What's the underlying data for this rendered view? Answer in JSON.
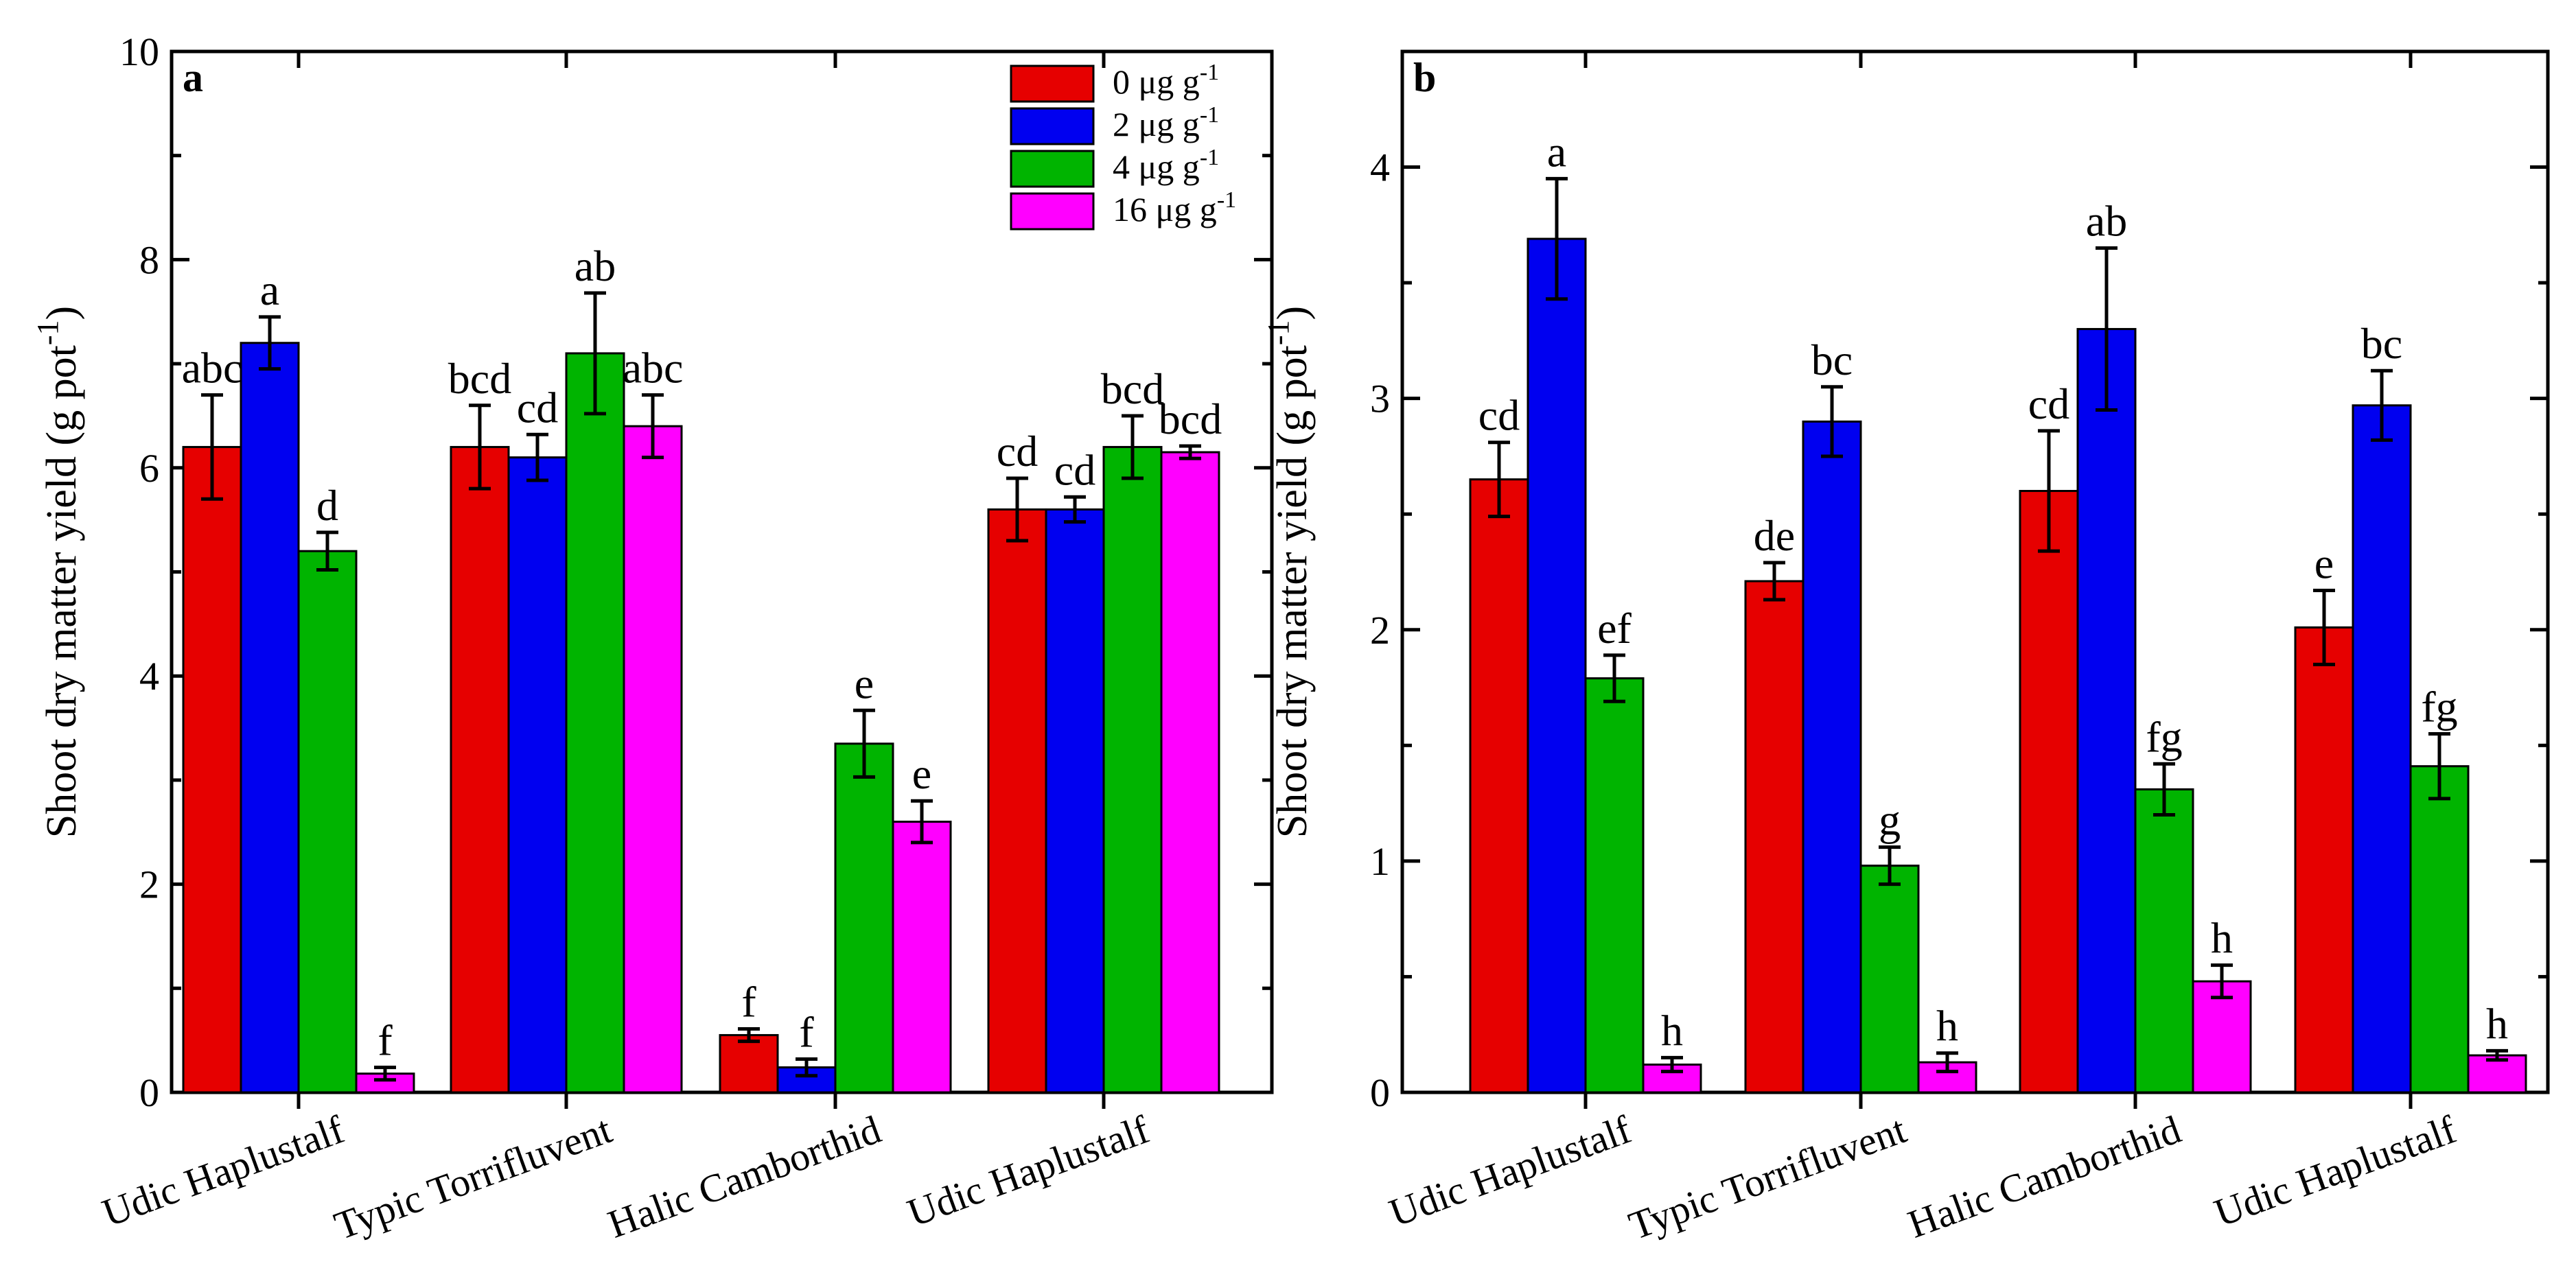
{
  "chart_data": [
    {
      "type": "bar",
      "panel_label": "a",
      "ylabel": "Shoot dry matter yield (g pot",
      "ylabel_sup": "-1",
      "ylabel_tail": ")",
      "ylim": [
        0,
        10
      ],
      "yticks": [
        "0",
        "2",
        "4",
        "6",
        "8",
        "10"
      ],
      "categories": [
        "Udic Haplustalf",
        "Typic Torrifluvent",
        "Halic Camborthid",
        "Udic Haplustalf"
      ],
      "legend": {
        "position": "top-right",
        "entries": [
          {
            "label": "0 μg g",
            "sup": "-1"
          },
          {
            "label": "2 μg g",
            "sup": "-1"
          },
          {
            "label": "4 μg g",
            "sup": "-1"
          },
          {
            "label": "16 μg g",
            "sup": "-1"
          }
        ]
      },
      "series": [
        {
          "name": "0 μg g-1",
          "color": "#e60000",
          "values": [
            6.2,
            6.2,
            0.55,
            5.6
          ],
          "errors": [
            0.5,
            0.4,
            0.06,
            0.3
          ],
          "letters": [
            "abc",
            "bcd",
            "f",
            "cd"
          ]
        },
        {
          "name": "2 μg g-1",
          "color": "#0000f0",
          "values": [
            7.2,
            6.1,
            0.24,
            5.6
          ],
          "errors": [
            0.25,
            0.22,
            0.08,
            0.12
          ],
          "letters": [
            "a",
            "cd",
            "f",
            "cd"
          ]
        },
        {
          "name": "4 μg g-1",
          "color": "#00b400",
          "values": [
            5.2,
            7.1,
            3.35,
            6.2
          ],
          "errors": [
            0.18,
            0.58,
            0.32,
            0.3
          ],
          "letters": [
            "d",
            "ab",
            "e",
            "bcd"
          ]
        },
        {
          "name": "16 μg g-1",
          "color": "#ff00ff",
          "values": [
            0.18,
            6.4,
            2.6,
            6.15
          ],
          "errors": [
            0.06,
            0.3,
            0.2,
            0.06
          ],
          "letters": [
            "f",
            "abc",
            "e",
            "bcd"
          ]
        }
      ]
    },
    {
      "type": "bar",
      "panel_label": "b",
      "ylabel": "Shoot dry matter yield (g pot",
      "ylabel_sup": "-1",
      "ylabel_tail": ")",
      "ylim": [
        0,
        4.5
      ],
      "yticks": [
        "0",
        "1",
        "2",
        "3",
        "4"
      ],
      "categories": [
        "Udic Haplustalf",
        "Typic Torrifluvent",
        "Halic Camborthid",
        "Udic Haplustalf"
      ],
      "series": [
        {
          "name": "0 μg g-1",
          "color": "#e60000",
          "values": [
            2.65,
            2.21,
            2.6,
            2.01
          ],
          "errors": [
            0.16,
            0.08,
            0.26,
            0.16
          ],
          "letters": [
            "cd",
            "de",
            "cd",
            "e"
          ]
        },
        {
          "name": "2 μg g-1",
          "color": "#0000f0",
          "values": [
            3.69,
            2.9,
            3.3,
            2.97
          ],
          "errors": [
            0.26,
            0.15,
            0.35,
            0.15
          ],
          "letters": [
            "a",
            "bc",
            "ab",
            "bc"
          ]
        },
        {
          "name": "4 μg g-1",
          "color": "#00b400",
          "values": [
            1.79,
            0.98,
            1.31,
            1.41
          ],
          "errors": [
            0.1,
            0.08,
            0.11,
            0.14
          ],
          "letters": [
            "ef",
            "g",
            "fg",
            "fg"
          ]
        },
        {
          "name": "16 μg g-1",
          "color": "#ff00ff",
          "values": [
            0.12,
            0.13,
            0.48,
            0.16
          ],
          "errors": [
            0.03,
            0.04,
            0.07,
            0.02
          ],
          "letters": [
            "h",
            "h",
            "h",
            "h"
          ]
        }
      ]
    }
  ]
}
